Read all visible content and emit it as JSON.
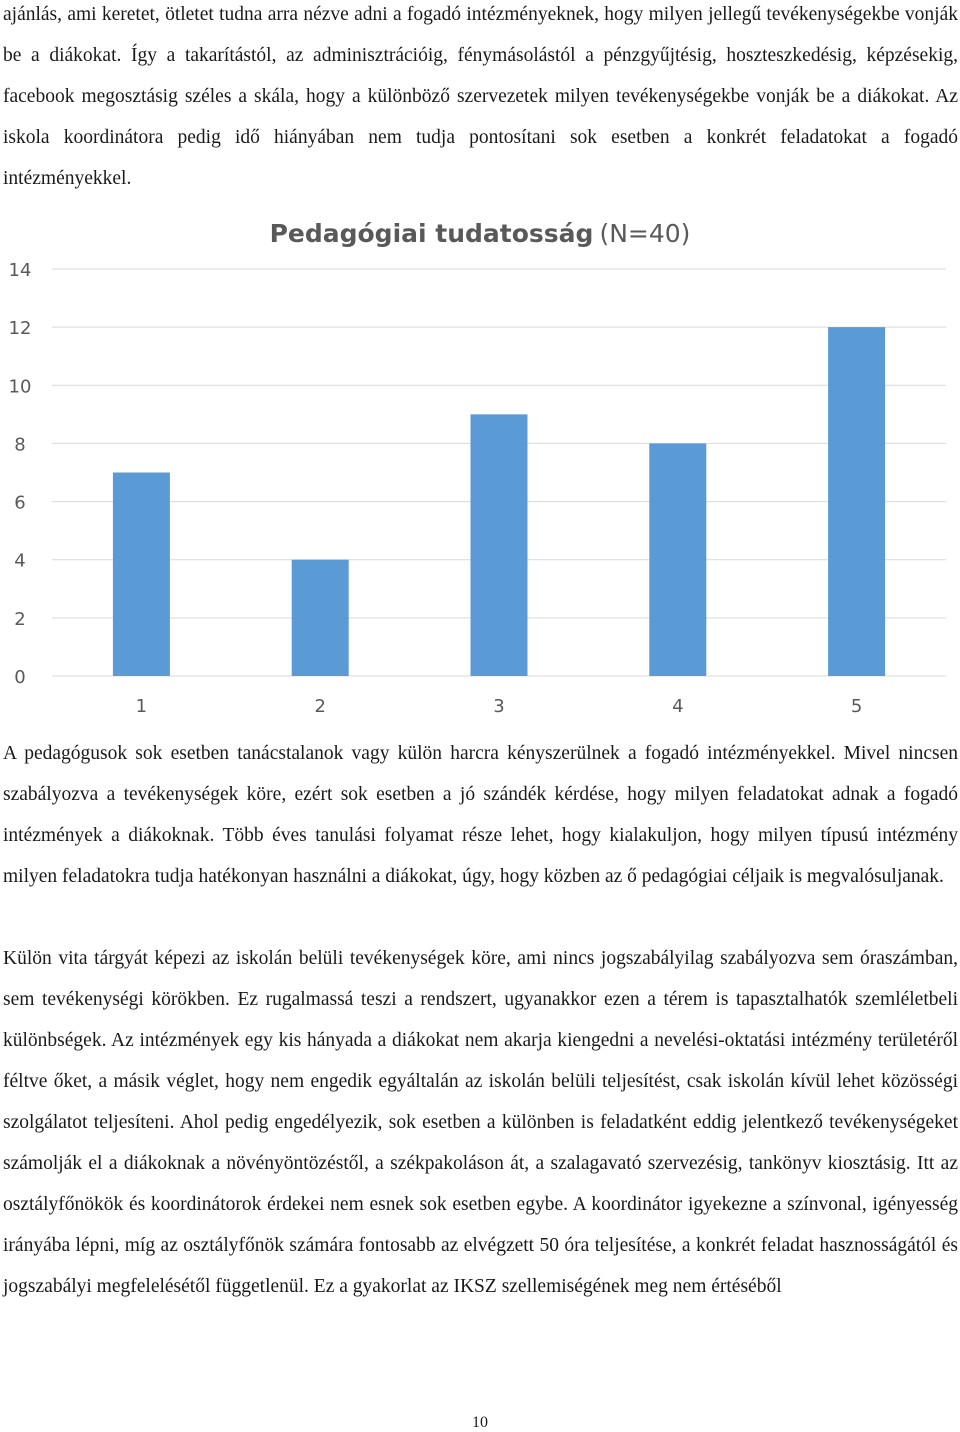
{
  "paragraphs": {
    "intro": "ajánlás, ami keretet, ötletet tudna arra nézve adni a fogadó intézményeknek, hogy milyen jellegű tevékenységekbe vonják be a diákokat. Így a takarítástól, az adminisztrációig, fénymásolástól a pénzgyűjtésig, hoszteszkedésig, képzésekig, facebook megosztásig széles a skála, hogy a különböző szervezetek milyen tevékenységekbe vonják be a diákokat. Az iskola koordinátora pedig idő hiányában nem tudja pontosítani sok esetben a konkrét feladatokat a fogadó intézményekkel.",
    "after_chart": "A pedagógusok sok esetben tanácstalanok vagy külön harcra kényszerülnek a fogadó intézményekkel. Mivel nincsen szabályozva a tevékenységek köre, ezért sok esetben a jó szándék kérdése, hogy milyen feladatokat adnak a fogadó intézmények a diákoknak. Több éves tanulási folyamat része lehet, hogy kialakuljon, hogy milyen típusú intézmény milyen feladatokra tudja hatékonyan használni a diákokat, úgy, hogy közben az ő pedagógiai céljaik is megvalósuljanak.",
    "closing": "Külön vita tárgyát képezi az iskolán belüli tevékenységek köre, ami nincs jogszabályilag szabályozva sem óraszámban, sem tevékenységi körökben. Ez rugalmassá teszi a rendszert, ugyanakkor ezen a térem is tapasztalhatók szemléletbeli különbségek. Az intézmények egy kis hányada a diákokat nem akarja kiengedni a nevelési-oktatási intézmény területéről féltve őket, a másik véglet, hogy nem engedik egyáltalán az iskolán belüli teljesítést, csak iskolán kívül lehet közösségi szolgálatot teljesíteni. Ahol pedig engedélyezik, sok esetben a különben is feladatként eddig jelentkező tevékenységeket számolják el a diákoknak a növényöntözéstől, a székpakoláson át, a szalagavató szervezésig, tankönyv kiosztásig. Itt az osztályfőnökök és koordinátorok érdekei nem esnek sok esetben egybe. A koordinátor igyekezne a színvonal, igényesség irányába lépni, míg az osztályfőnök számára fontosabb az elvégzett 50 óra teljesítése, a konkrét feladat hasznosságától és jogszabályi megfelelésétől függetlenül. Ez a gyakorlat az IKSZ szellemiségének meg nem értéséből"
  },
  "page_number": "10",
  "chart_data": {
    "type": "bar",
    "title": "Pedagógiai tudatosság",
    "title_suffix": "(N=40)",
    "categories": [
      "1",
      "2",
      "3",
      "4",
      "5"
    ],
    "values": [
      7,
      4,
      9,
      8,
      12
    ],
    "y_ticks": [
      "0",
      "2",
      "4",
      "6",
      "8",
      "10",
      "12",
      "14"
    ],
    "ylim": [
      0,
      14
    ],
    "grid": true,
    "legend": false,
    "bar_color": "#5b9bd5",
    "grid_color": "#d9d9d9"
  }
}
